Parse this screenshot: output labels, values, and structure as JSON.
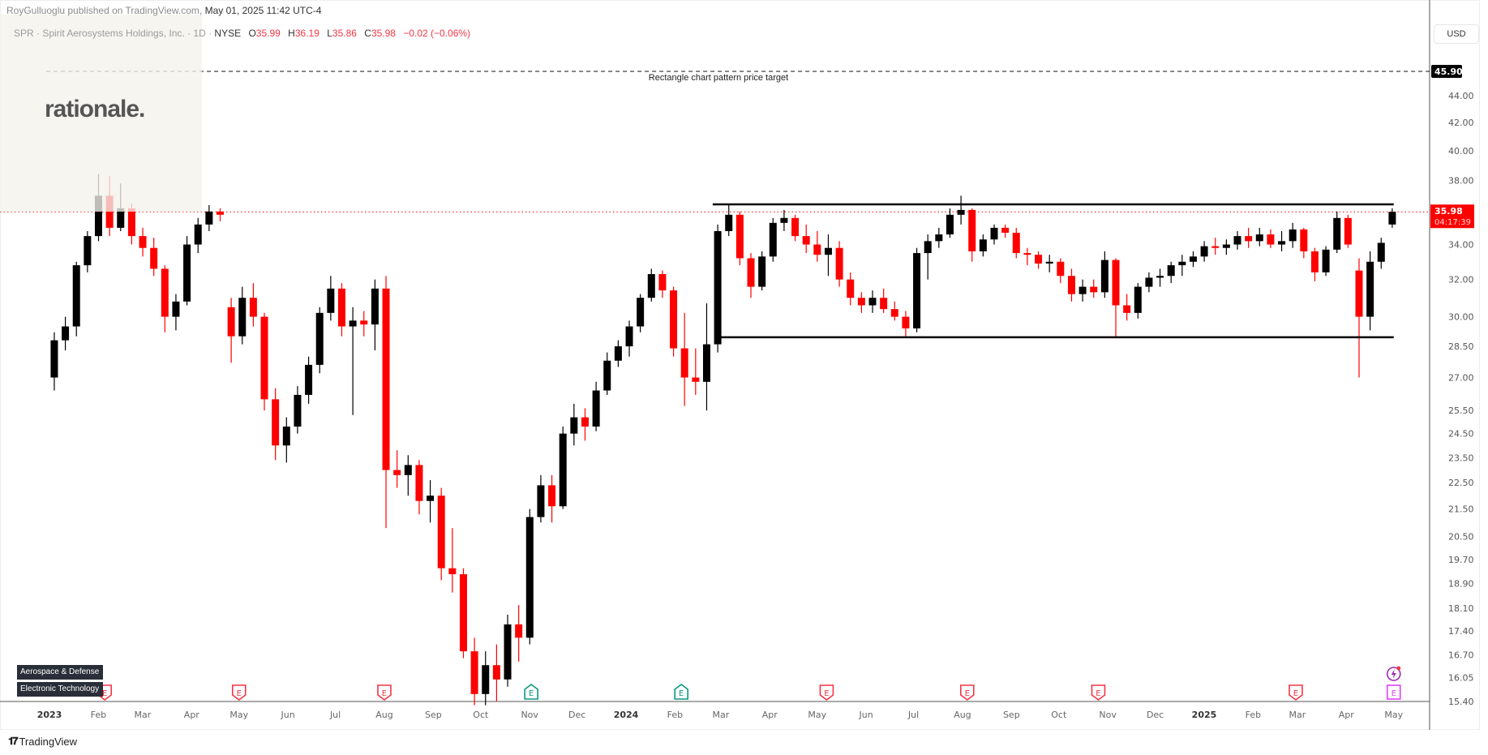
{
  "header": {
    "publisher": "RoyGulluoglu published on TradingView.com,",
    "date": "May 01, 2025 11:42 UTC-4"
  },
  "legend": {
    "symbol": "SPR · Spirit Aerosystems Holdings, Inc. · 1D ·",
    "exchange": "NYSE",
    "open_label": "O",
    "open": "35.99",
    "high_label": "H",
    "high": "36.19",
    "low_label": "L",
    "low": "35.86",
    "close_label": "C",
    "close": "35.98",
    "change": "−0.02 (−0.06%)"
  },
  "brand": "rationale.",
  "tags": [
    "Aerospace & Defense",
    "Electronic Technology"
  ],
  "currency": "USD",
  "footer_logo": "TradingView",
  "colors": {
    "up": "#000000",
    "down": "#ff0000",
    "last_price": "#ff0000",
    "earnings_past_miss": "#f23645",
    "earnings_past_beat": "#089981",
    "earnings_upcoming": "#e040fb",
    "tag_bg": "#2a2e39"
  },
  "chart_data": {
    "type": "candlestick",
    "interval_shown": "1D",
    "aggregation_in_data": "weekly approximation",
    "y_scale": "log",
    "ylim": [
      15.4,
      45.9
    ],
    "y_ticks": [
      44.0,
      42.0,
      40.0,
      38.0,
      34.0,
      32.0,
      30.0,
      28.5,
      27.0,
      25.5,
      24.5,
      23.5,
      22.5,
      21.5,
      20.5,
      19.7,
      18.9,
      18.1,
      17.4,
      16.7,
      16.05,
      15.4
    ],
    "x_ticks": [
      {
        "label": "2023",
        "date": "2023-01-01",
        "bold": true
      },
      {
        "label": "Feb",
        "date": "2023-02-01"
      },
      {
        "label": "Mar",
        "date": "2023-03-01"
      },
      {
        "label": "Apr",
        "date": "2023-04-01"
      },
      {
        "label": "May",
        "date": "2023-05-01"
      },
      {
        "label": "Jun",
        "date": "2023-06-01"
      },
      {
        "label": "Jul",
        "date": "2023-07-01"
      },
      {
        "label": "Aug",
        "date": "2023-08-01"
      },
      {
        "label": "Sep",
        "date": "2023-09-01"
      },
      {
        "label": "Oct",
        "date": "2023-10-01"
      },
      {
        "label": "Nov",
        "date": "2023-11-01"
      },
      {
        "label": "Dec",
        "date": "2023-12-01"
      },
      {
        "label": "2024",
        "date": "2024-01-01",
        "bold": true
      },
      {
        "label": "Feb",
        "date": "2024-02-01"
      },
      {
        "label": "Mar",
        "date": "2024-03-01"
      },
      {
        "label": "Apr",
        "date": "2024-04-01"
      },
      {
        "label": "May",
        "date": "2024-05-01"
      },
      {
        "label": "Jun",
        "date": "2024-06-01"
      },
      {
        "label": "Jul",
        "date": "2024-07-01"
      },
      {
        "label": "Aug",
        "date": "2024-08-01"
      },
      {
        "label": "Sep",
        "date": "2024-09-01"
      },
      {
        "label": "Oct",
        "date": "2024-10-01"
      },
      {
        "label": "Nov",
        "date": "2024-11-01"
      },
      {
        "label": "Dec",
        "date": "2024-12-01"
      },
      {
        "label": "2025",
        "date": "2025-01-01",
        "bold": true
      },
      {
        "label": "Feb",
        "date": "2025-02-01"
      },
      {
        "label": "Mar",
        "date": "2025-03-01"
      },
      {
        "label": "Apr",
        "date": "2025-04-01"
      },
      {
        "label": "May",
        "date": "2025-05-01"
      }
    ],
    "ohlc_columns": [
      "week_of",
      "open",
      "high",
      "low",
      "close"
    ],
    "ohlc": [
      [
        "2023-01-02",
        27.0,
        29.2,
        26.4,
        28.8
      ],
      [
        "2023-01-09",
        28.8,
        30.0,
        28.3,
        29.5
      ],
      [
        "2023-01-16",
        29.5,
        33.0,
        29.0,
        32.8
      ],
      [
        "2023-01-23",
        32.8,
        34.8,
        32.4,
        34.5
      ],
      [
        "2023-01-30",
        34.5,
        38.4,
        34.2,
        37.0
      ],
      [
        "2023-02-06",
        37.0,
        38.3,
        34.5,
        35.0
      ],
      [
        "2023-02-13",
        35.0,
        37.8,
        34.8,
        36.2
      ],
      [
        "2023-02-20",
        36.2,
        36.5,
        34.0,
        34.5
      ],
      [
        "2023-02-27",
        34.5,
        35.0,
        33.3,
        33.8
      ],
      [
        "2023-03-06",
        33.8,
        34.4,
        32.2,
        32.6
      ],
      [
        "2023-03-13",
        32.6,
        32.8,
        29.2,
        30.0
      ],
      [
        "2023-03-20",
        30.0,
        31.2,
        29.3,
        30.8
      ],
      [
        "2023-03-27",
        30.8,
        34.5,
        30.6,
        34.0
      ],
      [
        "2023-04-03",
        34.0,
        35.6,
        33.5,
        35.2
      ],
      [
        "2023-04-10",
        35.2,
        36.4,
        34.8,
        36.0
      ],
      [
        "2023-04-17",
        36.0,
        36.2,
        35.4,
        35.8
      ],
      [
        "2023-04-24",
        30.5,
        31.0,
        27.7,
        29.0
      ],
      [
        "2023-05-01",
        29.0,
        31.6,
        28.6,
        31.0
      ],
      [
        "2023-05-08",
        31.0,
        31.8,
        29.5,
        30.0
      ],
      [
        "2023-05-15",
        30.0,
        30.2,
        25.5,
        26.0
      ],
      [
        "2023-05-22",
        26.0,
        26.5,
        23.4,
        24.0
      ],
      [
        "2023-05-29",
        24.0,
        25.2,
        23.3,
        24.8
      ],
      [
        "2023-06-05",
        24.8,
        26.6,
        24.5,
        26.2
      ],
      [
        "2023-06-12",
        26.2,
        28.0,
        25.8,
        27.6
      ],
      [
        "2023-06-19",
        27.6,
        30.5,
        27.2,
        30.2
      ],
      [
        "2023-06-26",
        30.2,
        32.2,
        29.8,
        31.5
      ],
      [
        "2023-07-03",
        31.5,
        31.8,
        29.0,
        29.5
      ],
      [
        "2023-07-10",
        29.5,
        30.5,
        25.3,
        29.8
      ],
      [
        "2023-07-17",
        29.8,
        30.3,
        29.0,
        29.6
      ],
      [
        "2023-07-24",
        29.6,
        32.0,
        28.3,
        31.5
      ],
      [
        "2023-07-31",
        31.5,
        32.2,
        20.8,
        23.0
      ],
      [
        "2023-08-07",
        23.0,
        23.8,
        22.3,
        22.8
      ],
      [
        "2023-08-14",
        22.8,
        23.6,
        22.0,
        23.2
      ],
      [
        "2023-08-21",
        23.2,
        23.4,
        21.3,
        21.8
      ],
      [
        "2023-08-28",
        21.8,
        22.6,
        21.0,
        22.0
      ],
      [
        "2023-09-04",
        22.0,
        22.3,
        19.0,
        19.4
      ],
      [
        "2023-09-11",
        19.4,
        20.8,
        18.6,
        19.2
      ],
      [
        "2023-09-18",
        19.2,
        19.4,
        16.6,
        16.8
      ],
      [
        "2023-09-25",
        16.8,
        17.2,
        15.3,
        15.6
      ],
      [
        "2023-10-02",
        15.6,
        16.8,
        15.3,
        16.4
      ],
      [
        "2023-10-09",
        16.4,
        17.0,
        15.4,
        16.0
      ],
      [
        "2023-10-16",
        16.0,
        17.9,
        15.8,
        17.6
      ],
      [
        "2023-10-23",
        17.6,
        18.2,
        16.5,
        17.2
      ],
      [
        "2023-10-30",
        17.2,
        21.5,
        17.0,
        21.2
      ],
      [
        "2023-11-06",
        21.2,
        22.8,
        21.0,
        22.4
      ],
      [
        "2023-11-13",
        22.4,
        22.8,
        21.0,
        21.6
      ],
      [
        "2023-11-20",
        21.6,
        24.8,
        21.5,
        24.5
      ],
      [
        "2023-11-27",
        24.5,
        25.8,
        24.0,
        25.2
      ],
      [
        "2023-12-04",
        25.2,
        25.6,
        24.2,
        24.8
      ],
      [
        "2023-12-11",
        24.8,
        26.8,
        24.6,
        26.4
      ],
      [
        "2023-12-18",
        26.4,
        28.2,
        26.2,
        27.8
      ],
      [
        "2023-12-25",
        27.8,
        28.8,
        27.5,
        28.5
      ],
      [
        "2024-01-01",
        28.5,
        29.8,
        28.0,
        29.5
      ],
      [
        "2024-01-08",
        29.5,
        31.2,
        29.2,
        31.0
      ],
      [
        "2024-01-15",
        31.0,
        32.6,
        30.8,
        32.3
      ],
      [
        "2024-01-22",
        32.3,
        32.5,
        31.0,
        31.4
      ],
      [
        "2024-01-29",
        31.4,
        31.6,
        28.0,
        28.4
      ],
      [
        "2024-02-05",
        28.4,
        30.2,
        25.7,
        27.0
      ],
      [
        "2024-02-12",
        27.0,
        28.4,
        26.2,
        26.8
      ],
      [
        "2024-02-19",
        26.8,
        30.7,
        25.5,
        28.6
      ],
      [
        "2024-02-26",
        28.6,
        35.2,
        28.2,
        34.8
      ],
      [
        "2024-03-04",
        34.8,
        36.5,
        34.5,
        35.8
      ],
      [
        "2024-03-11",
        35.8,
        36.0,
        32.8,
        33.2
      ],
      [
        "2024-03-18",
        33.2,
        33.5,
        31.0,
        31.6
      ],
      [
        "2024-03-25",
        31.6,
        33.6,
        31.4,
        33.3
      ],
      [
        "2024-04-01",
        33.3,
        35.6,
        33.0,
        35.3
      ],
      [
        "2024-04-08",
        35.3,
        36.1,
        34.8,
        35.6
      ],
      [
        "2024-04-15",
        35.6,
        35.8,
        34.2,
        34.5
      ],
      [
        "2024-04-22",
        34.5,
        35.2,
        33.5,
        34.0
      ],
      [
        "2024-04-29",
        34.0,
        34.8,
        33.0,
        33.4
      ],
      [
        "2024-05-06",
        33.4,
        34.6,
        32.2,
        33.8
      ],
      [
        "2024-05-13",
        33.8,
        34.2,
        31.6,
        32.0
      ],
      [
        "2024-05-20",
        32.0,
        32.4,
        30.6,
        31.0
      ],
      [
        "2024-05-27",
        31.0,
        31.3,
        30.2,
        30.6
      ],
      [
        "2024-06-03",
        30.6,
        31.4,
        30.2,
        31.0
      ],
      [
        "2024-06-10",
        31.0,
        31.5,
        30.2,
        30.4
      ],
      [
        "2024-06-17",
        30.4,
        30.8,
        29.8,
        30.0
      ],
      [
        "2024-06-24",
        30.0,
        30.3,
        29.0,
        29.4
      ],
      [
        "2024-07-01",
        29.4,
        33.8,
        29.2,
        33.5
      ],
      [
        "2024-07-08",
        33.5,
        34.6,
        32.0,
        34.2
      ],
      [
        "2024-07-15",
        34.2,
        35.0,
        33.8,
        34.6
      ],
      [
        "2024-07-22",
        34.6,
        36.2,
        34.4,
        35.8
      ],
      [
        "2024-07-29",
        35.8,
        37.0,
        35.2,
        36.1
      ],
      [
        "2024-08-05",
        36.1,
        36.2,
        33.0,
        33.6
      ],
      [
        "2024-08-12",
        33.6,
        34.6,
        33.3,
        34.3
      ],
      [
        "2024-08-19",
        34.3,
        35.2,
        34.0,
        35.0
      ],
      [
        "2024-08-26",
        35.0,
        35.2,
        34.4,
        34.7
      ],
      [
        "2024-09-02",
        34.7,
        35.0,
        33.2,
        33.5
      ],
      [
        "2024-09-09",
        33.5,
        33.8,
        32.8,
        33.4
      ],
      [
        "2024-09-16",
        33.4,
        33.6,
        32.6,
        32.9
      ],
      [
        "2024-09-23",
        32.9,
        33.4,
        32.4,
        33.0
      ],
      [
        "2024-09-30",
        33.0,
        33.2,
        31.8,
        32.2
      ],
      [
        "2024-10-07",
        32.2,
        32.6,
        30.8,
        31.2
      ],
      [
        "2024-10-14",
        31.2,
        32.0,
        30.8,
        31.6
      ],
      [
        "2024-10-21",
        31.6,
        32.0,
        31.0,
        31.3
      ],
      [
        "2024-10-28",
        31.3,
        33.6,
        31.0,
        33.1
      ],
      [
        "2024-11-04",
        33.1,
        33.2,
        28.9,
        30.6
      ],
      [
        "2024-11-11",
        30.6,
        31.2,
        29.8,
        30.2
      ],
      [
        "2024-11-18",
        30.2,
        31.8,
        29.9,
        31.6
      ],
      [
        "2024-11-25",
        31.6,
        32.4,
        31.3,
        32.1
      ],
      [
        "2024-12-02",
        32.1,
        32.6,
        31.6,
        32.2
      ],
      [
        "2024-12-09",
        32.2,
        33.0,
        31.8,
        32.8
      ],
      [
        "2024-12-16",
        32.8,
        33.4,
        32.2,
        33.0
      ],
      [
        "2024-12-23",
        33.0,
        33.6,
        32.7,
        33.3
      ],
      [
        "2024-12-30",
        33.3,
        34.2,
        33.0,
        33.9
      ],
      [
        "2025-01-06",
        33.9,
        34.4,
        33.4,
        33.8
      ],
      [
        "2025-01-13",
        33.8,
        34.3,
        33.4,
        34.0
      ],
      [
        "2025-01-20",
        34.0,
        34.8,
        33.7,
        34.5
      ],
      [
        "2025-01-27",
        34.5,
        35.0,
        33.8,
        34.2
      ],
      [
        "2025-02-03",
        34.2,
        35.0,
        33.9,
        34.6
      ],
      [
        "2025-02-10",
        34.6,
        34.9,
        33.8,
        34.0
      ],
      [
        "2025-02-17",
        34.0,
        34.8,
        33.6,
        34.2
      ],
      [
        "2025-02-24",
        34.2,
        35.3,
        33.8,
        34.9
      ],
      [
        "2025-03-03",
        34.9,
        35.0,
        33.2,
        33.6
      ],
      [
        "2025-03-10",
        33.6,
        33.8,
        31.9,
        32.4
      ],
      [
        "2025-03-17",
        32.4,
        33.9,
        32.2,
        33.7
      ],
      [
        "2025-03-24",
        33.7,
        36.0,
        33.5,
        35.6
      ],
      [
        "2025-03-31",
        35.6,
        35.8,
        33.8,
        34.0
      ],
      [
        "2025-04-07",
        32.5,
        33.2,
        27.0,
        30.0
      ],
      [
        "2025-04-14",
        30.0,
        33.6,
        29.3,
        33.0
      ],
      [
        "2025-04-21",
        33.0,
        34.4,
        32.6,
        34.1
      ],
      [
        "2025-04-28",
        35.2,
        36.2,
        35.0,
        35.98
      ]
    ],
    "last_price": {
      "value": 35.98,
      "label": "35.98",
      "countdown": "04:17:39"
    },
    "price_target": {
      "value": 45.9,
      "label": "45.90",
      "text": "Rectangle chart pattern price target",
      "from_date": "2022-12-30"
    },
    "rectangle": {
      "top": 36.45,
      "bottom": 28.95,
      "from_date": "2024-03-01",
      "to_date": "2025-05-01"
    },
    "earnings": [
      {
        "date": "2023-02-05",
        "kind": "past_miss",
        "label": "E"
      },
      {
        "date": "2023-05-01",
        "kind": "past_miss",
        "label": "E"
      },
      {
        "date": "2023-08-01",
        "kind": "past_miss",
        "label": "E"
      },
      {
        "date": "2023-11-02",
        "kind": "past_beat",
        "label": "E"
      },
      {
        "date": "2024-02-05",
        "kind": "past_beat",
        "label": "E"
      },
      {
        "date": "2024-05-07",
        "kind": "past_miss",
        "label": "E"
      },
      {
        "date": "2024-08-04",
        "kind": "past_miss",
        "label": "E"
      },
      {
        "date": "2024-10-26",
        "kind": "past_miss",
        "label": "E"
      },
      {
        "date": "2025-02-28",
        "kind": "past_miss",
        "label": "E"
      },
      {
        "date": "2025-05-01",
        "kind": "upcoming",
        "label": "E"
      }
    ],
    "event_icon": {
      "date": "2025-05-01",
      "icon": "lightning-icon"
    }
  }
}
